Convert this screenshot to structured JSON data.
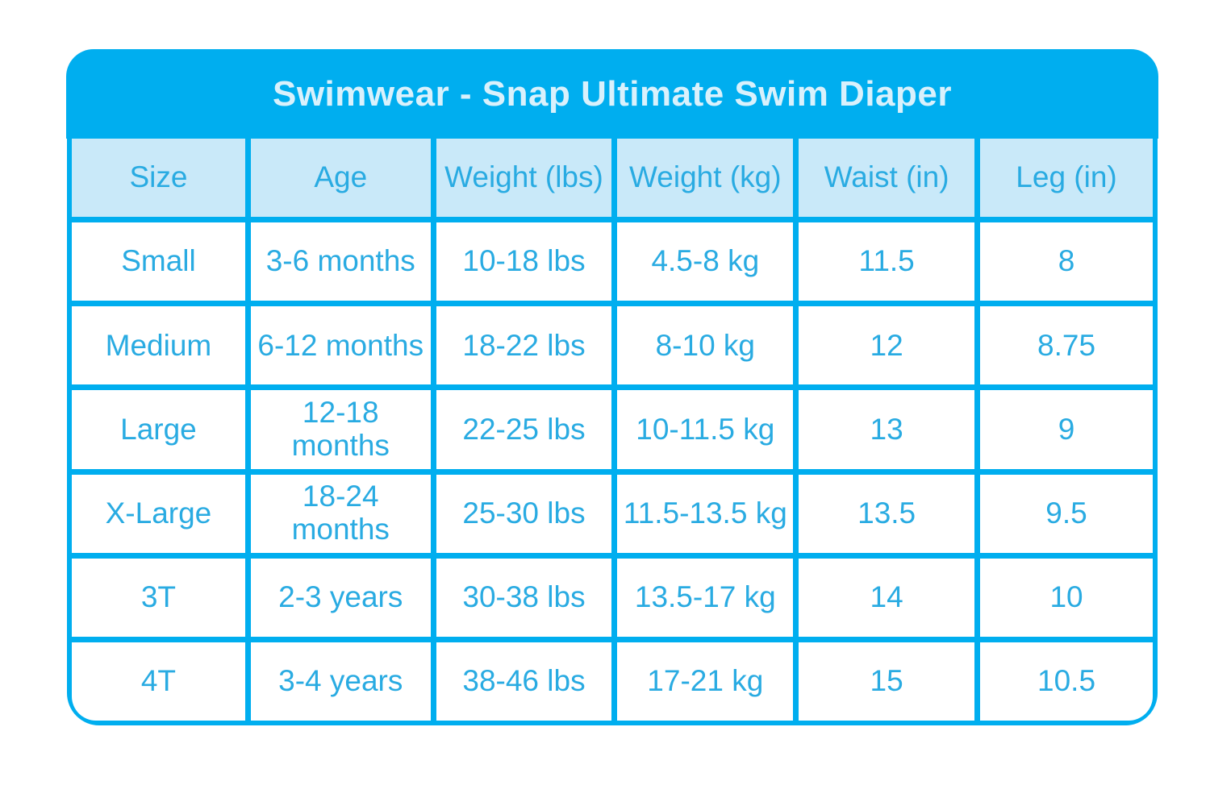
{
  "chart_data": {
    "type": "table",
    "title": "Swimwear - Snap Ultimate Swim Diaper",
    "columns": [
      "Size",
      "Age",
      "Weight (lbs)",
      "Weight (kg)",
      "Waist (in)",
      "Leg (in)"
    ],
    "rows": [
      [
        "Small",
        "3-6 months",
        "10-18 lbs",
        "4.5-8 kg",
        "11.5",
        "8"
      ],
      [
        "Medium",
        "6-12 months",
        "18-22 lbs",
        "8-10 kg",
        "12",
        "8.75"
      ],
      [
        "Large",
        "12-18 months",
        "22-25 lbs",
        "10-11.5 kg",
        "13",
        "9"
      ],
      [
        "X-Large",
        "18-24 months",
        "25-30 lbs",
        "11.5-13.5 kg",
        "13.5",
        "9.5"
      ],
      [
        "3T",
        "2-3 years",
        "30-38 lbs",
        "13.5-17 kg",
        "14",
        "10"
      ],
      [
        "4T",
        "3-4 years",
        "38-46 lbs",
        "17-21 kg",
        "15",
        "10.5"
      ]
    ]
  },
  "colors": {
    "accent": "#00AEEF",
    "header_bg": "#C9E9F9",
    "title_text": "#D9F1FC",
    "cell_text": "#29ABE2",
    "page_bg": "#FFFFFF"
  }
}
